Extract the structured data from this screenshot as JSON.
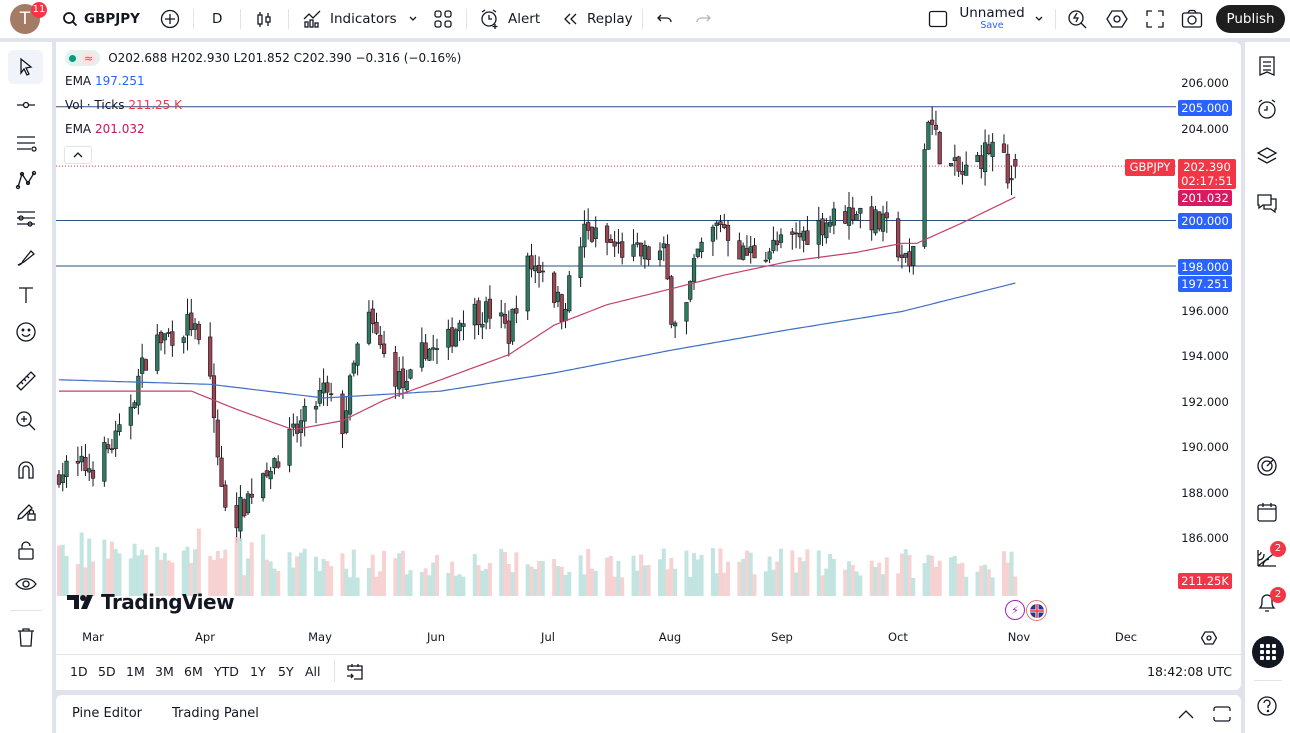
{
  "topbar": {
    "avatar_letter": "T",
    "avatar_badge": "11",
    "symbol": "GBPJPY",
    "interval": "D",
    "indicators_label": "Indicators",
    "alert_label": "Alert",
    "replay_label": "Replay",
    "layout_name": "Unnamed",
    "layout_save": "Save",
    "publish_label": "Publish"
  },
  "legend": {
    "ohlc": "O202.688 H202.930 L201.852 C202.390 −0.316 (−0.16%)",
    "ema1_label": "EMA",
    "ema1_value": "197.251",
    "vol_label": "Vol · Ticks",
    "vol_value": "211.25 K",
    "ema2_label": "EMA",
    "ema2_value": "201.032"
  },
  "price_axis": {
    "ticks": [
      "206.000",
      "204.000",
      "196.000",
      "194.000",
      "192.000",
      "190.000",
      "188.000",
      "186.000"
    ],
    "badges": {
      "line_205": "205.000",
      "symbol": "GBPJPY",
      "last_price": "202.390",
      "countdown": "02:17:51",
      "ema_fast": "201.032",
      "line_200": "200.000",
      "line_198": "198.000",
      "ema_slow": "197.251",
      "volume": "211.25K"
    }
  },
  "time_axis": {
    "months": [
      "Mar",
      "Apr",
      "May",
      "Jun",
      "Jul",
      "Aug",
      "Sep",
      "Oct",
      "Nov",
      "Dec"
    ]
  },
  "range_buttons": [
    "1D",
    "5D",
    "1M",
    "3M",
    "6M",
    "YTD",
    "1Y",
    "5Y",
    "All"
  ],
  "clock": "18:42:08 UTC",
  "bottom_tabs": [
    "Pine Editor",
    "Trading Panel"
  ],
  "watermark": "TradingView",
  "right_badges": {
    "ideas": "2",
    "alerts": "2"
  },
  "colors": {
    "up": "#2f7a5e",
    "down": "#9e4650",
    "ema_fast": "#c2185b",
    "ema_slow": "#2962ff",
    "hline": "#2a4f80",
    "badge_blue": "#2962ff",
    "badge_red": "#f23645",
    "vol_up": "#b9e0dc",
    "vol_down": "#f6caca"
  },
  "chart_data": {
    "type": "candlestick",
    "symbol": "GBPJPY",
    "interval": "D",
    "ylim": [
      184,
      206.5
    ],
    "close_path": [
      [
        "2024-02-21",
        189.0
      ],
      [
        "2024-03-01",
        189.2
      ],
      [
        "2024-03-08",
        190.5
      ],
      [
        "2024-03-16",
        194.5
      ],
      [
        "2024-03-27",
        195.5
      ],
      [
        "2024-04-01",
        193.0
      ],
      [
        "2024-04-04",
        188.0
      ],
      [
        "2024-04-08",
        187.0
      ],
      [
        "2024-04-15",
        189.0
      ],
      [
        "2024-04-23",
        190.5
      ],
      [
        "2024-05-01",
        192.5
      ],
      [
        "2024-05-06",
        191.0
      ],
      [
        "2024-05-12",
        196.0
      ],
      [
        "2024-05-17",
        194.0
      ],
      [
        "2024-05-23",
        192.5
      ],
      [
        "2024-05-28",
        194.5
      ],
      [
        "2024-06-01",
        194.0
      ],
      [
        "2024-06-07",
        196.0
      ],
      [
        "2024-06-15",
        196.0
      ],
      [
        "2024-06-19",
        195.0
      ],
      [
        "2024-06-23",
        198.0
      ],
      [
        "2024-06-28",
        198.0
      ],
      [
        "2024-07-03",
        196.0
      ],
      [
        "2024-07-09",
        199.5
      ],
      [
        "2024-07-15",
        199.0
      ],
      [
        "2024-07-22",
        198.5
      ],
      [
        "2024-07-30",
        198.5
      ],
      [
        "2024-08-01",
        196.0
      ],
      [
        "2024-08-04",
        195.5
      ],
      [
        "2024-08-08",
        198.5
      ],
      [
        "2024-08-14",
        200.0
      ],
      [
        "2024-08-20",
        198.5
      ],
      [
        "2024-09-01",
        199.0
      ],
      [
        "2024-09-11",
        200.0
      ],
      [
        "2024-09-19",
        200.5
      ],
      [
        "2024-09-28",
        199.5
      ],
      [
        "2024-10-03",
        197.8
      ],
      [
        "2024-10-06",
        201.5
      ],
      [
        "2024-10-08",
        204.7
      ],
      [
        "2024-10-12",
        202.5
      ],
      [
        "2024-10-17",
        202.0
      ],
      [
        "2024-10-23",
        203.0
      ],
      [
        "2024-10-27",
        203.5
      ],
      [
        "2024-10-29",
        201.5
      ],
      [
        "2024-10-31",
        202.39
      ]
    ],
    "ema_slow_path": [
      [
        "2024-02-21",
        193.0
      ],
      [
        "2024-04-01",
        192.8
      ],
      [
        "2024-05-01",
        192.2
      ],
      [
        "2024-06-01",
        192.5
      ],
      [
        "2024-07-01",
        193.3
      ],
      [
        "2024-08-01",
        194.3
      ],
      [
        "2024-09-01",
        195.2
      ],
      [
        "2024-10-01",
        196.0
      ],
      [
        "2024-10-31",
        197.251
      ]
    ],
    "ema_fast_path": [
      [
        "2024-02-21",
        192.5
      ],
      [
        "2024-03-27",
        192.5
      ],
      [
        "2024-04-08",
        191.7
      ],
      [
        "2024-04-23",
        190.8
      ],
      [
        "2024-05-06",
        191.2
      ],
      [
        "2024-05-17",
        192.1
      ],
      [
        "2024-06-01",
        193.0
      ],
      [
        "2024-06-19",
        194.1
      ],
      [
        "2024-07-01",
        195.4
      ],
      [
        "2024-07-15",
        196.3
      ],
      [
        "2024-08-01",
        197.0
      ],
      [
        "2024-08-15",
        197.6
      ],
      [
        "2024-09-01",
        198.2
      ],
      [
        "2024-09-19",
        198.6
      ],
      [
        "2024-10-01",
        199.0
      ],
      [
        "2024-10-05",
        199.0
      ],
      [
        "2024-10-17",
        199.9
      ],
      [
        "2024-10-31",
        201.032
      ]
    ],
    "horizontal_lines": [
      205,
      200,
      198
    ],
    "last_price": 202.39
  }
}
